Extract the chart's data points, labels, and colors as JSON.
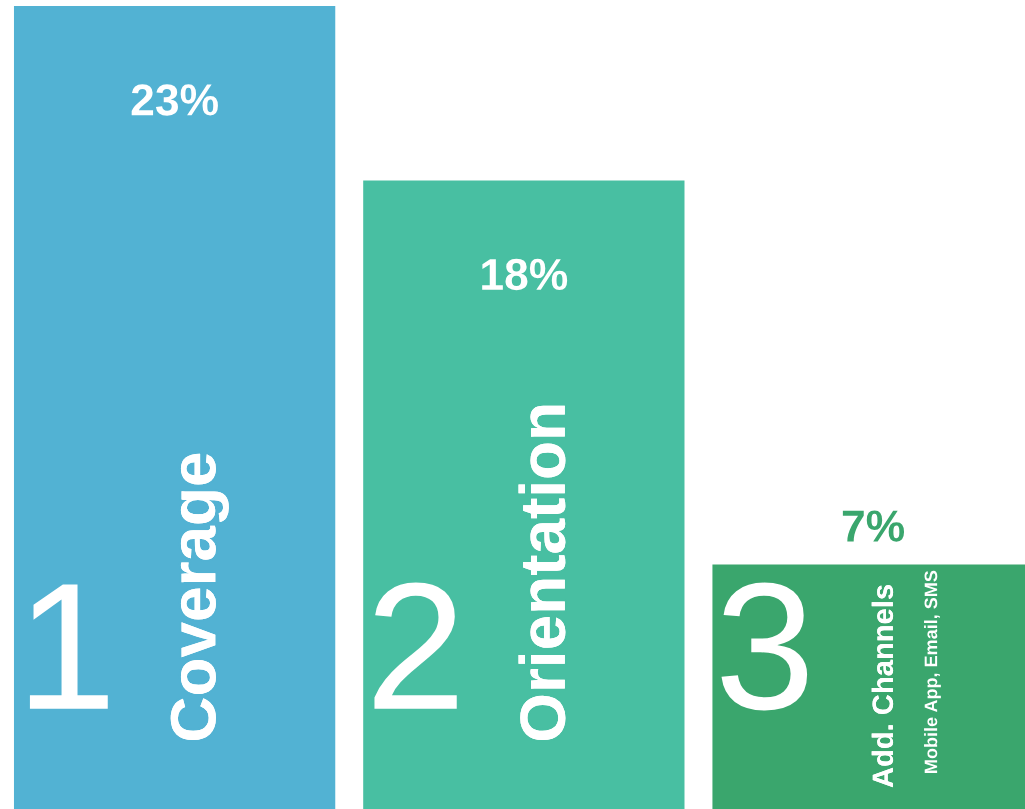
{
  "chart_data": {
    "type": "bar",
    "categories": [
      "Coverage",
      "Orientation",
      "Add. Channels"
    ],
    "values": [
      23,
      18,
      7
    ],
    "colors": [
      "#52b2d3",
      "#48bfa2",
      "#3aa66d"
    ],
    "value_labels": [
      "23%",
      "18%",
      "7%"
    ],
    "ylim": [
      0,
      23.17
    ],
    "annotations": [
      "1",
      "2",
      "3",
      "Mobile App, Email, SMS"
    ]
  }
}
